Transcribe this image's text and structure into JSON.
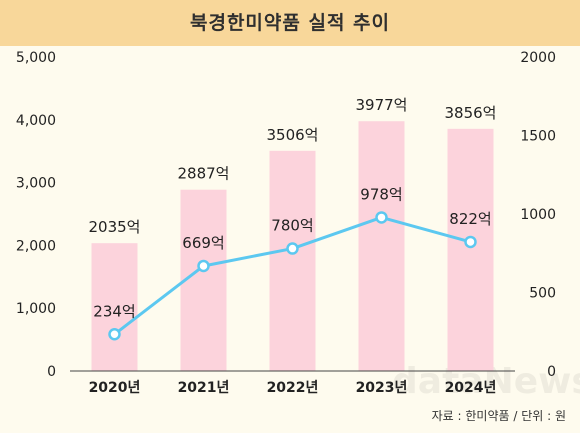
{
  "title": "북경한미약품 실적 추이",
  "source": "자료 : 한미약품 / 단위 : 원",
  "watermark": "dataNews",
  "colors": {
    "bar": "#fcd3dc",
    "line": "#5cc8f0",
    "marker_fill": "#ffffff",
    "banner": "#f8d79a",
    "background": "#fefbee"
  },
  "chart_data": {
    "type": "bar",
    "categories": [
      "2020년",
      "2021년",
      "2022년",
      "2023년",
      "2024년"
    ],
    "series": [
      {
        "type": "bar",
        "axis": "left",
        "values": [
          2035,
          2887,
          3506,
          3977,
          3856
        ],
        "labels": [
          "2035억",
          "2887억",
          "3506억",
          "3977억",
          "3856억"
        ]
      },
      {
        "type": "line",
        "axis": "right",
        "values": [
          234,
          669,
          780,
          978,
          822
        ],
        "labels": [
          "234억",
          "669억",
          "780억",
          "978억",
          "822억"
        ]
      }
    ],
    "y_left": {
      "min": 0,
      "max": 5000,
      "ticks": [
        "0",
        "1,000",
        "2,000",
        "3,000",
        "4,000",
        "5,000"
      ],
      "tick_values": [
        0,
        1000,
        2000,
        3000,
        4000,
        5000
      ]
    },
    "y_right": {
      "min": 0,
      "max": 2000,
      "ticks": [
        "0",
        "500",
        "1000",
        "1500",
        "2000"
      ],
      "tick_values": [
        0,
        500,
        1000,
        1500,
        2000
      ]
    },
    "grid": false,
    "legend": "none"
  }
}
